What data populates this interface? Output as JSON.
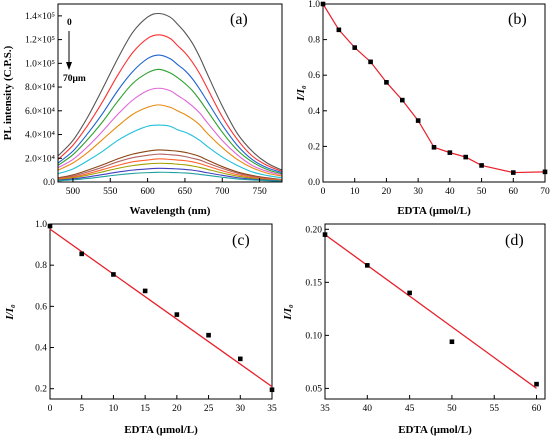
{
  "chart_data": [
    {
      "type": "line",
      "panel_label": "(a)",
      "xlabel": "Wavelength (nm)",
      "ylabel": "PL intensity (C.P.S.)",
      "xlim": [
        480,
        780
      ],
      "ylim": [
        0,
        150000
      ],
      "x_ticks": [
        "500",
        "550",
        "600",
        "650",
        "700",
        "750"
      ],
      "y_ticks": [
        "0.0",
        "2.0×10⁴",
        "4.0×10⁴",
        "6.0×10⁴",
        "8.0×10⁴",
        "1.0×10⁵",
        "1.2×10⁵",
        "1.4×10⁵"
      ],
      "annotations": {
        "top": "0",
        "bottom": "70μm"
      },
      "x": [
        480,
        500,
        520,
        540,
        560,
        580,
        600,
        615,
        630,
        640,
        650,
        660,
        670,
        680,
        700,
        720,
        740,
        760,
        780
      ],
      "series": [
        {
          "color": "#555555",
          "values": [
            22000,
            35000,
            55000,
            79000,
            104000,
            126000,
            139000,
            142000,
            139000,
            133000,
            126000,
            117000,
            105000,
            91000,
            64000,
            41000,
            26000,
            16000,
            10000
          ]
        },
        {
          "color": "#ff3030",
          "values": [
            19000,
            31000,
            48000,
            68000,
            90000,
            109000,
            121000,
            124000,
            121000,
            115000,
            109000,
            101000,
            91000,
            79000,
            55000,
            36000,
            22000,
            14000,
            9000
          ]
        },
        {
          "color": "#1e64d2",
          "values": [
            16000,
            26000,
            41000,
            58000,
            77000,
            93000,
            104000,
            107000,
            104000,
            99000,
            94000,
            87000,
            78000,
            68000,
            48000,
            31000,
            19000,
            12000,
            8000
          ]
        },
        {
          "color": "#2ca02c",
          "values": [
            14000,
            23000,
            36000,
            51000,
            68000,
            83000,
            92000,
            95000,
            92000,
            88000,
            83000,
            77000,
            69000,
            60000,
            42000,
            27000,
            17000,
            10500,
            7000
          ]
        },
        {
          "color": "#e066d8",
          "values": [
            12000,
            19000,
            30000,
            43000,
            57000,
            69000,
            77000,
            79000,
            77000,
            73000,
            69000,
            64000,
            58000,
            50000,
            35000,
            23000,
            14000,
            9000,
            6000
          ]
        },
        {
          "color": "#e88a10",
          "values": [
            10000,
            16000,
            25000,
            36000,
            47000,
            57000,
            63000,
            65000,
            63000,
            60000,
            57000,
            53000,
            48000,
            41000,
            29000,
            19000,
            12000,
            7500,
            5000
          ]
        },
        {
          "color": "#20c0d8",
          "values": [
            7000,
            11000,
            18000,
            26000,
            35000,
            42000,
            47000,
            48000,
            47000,
            44000,
            42000,
            39000,
            35000,
            30000,
            21000,
            14000,
            8500,
            5500,
            3500
          ]
        },
        {
          "color": "#8b4513",
          "values": [
            3500,
            6000,
            10000,
            14500,
            19500,
            23500,
            26000,
            27000,
            26500,
            26000,
            25000,
            23500,
            21500,
            18500,
            13000,
            8500,
            5500,
            3500,
            2000
          ]
        },
        {
          "color": "#b06060",
          "values": [
            3000,
            5000,
            8500,
            12500,
            17000,
            20500,
            22500,
            23500,
            23000,
            22500,
            21500,
            20000,
            18500,
            16000,
            11500,
            7500,
            4800,
            3000,
            1800
          ]
        },
        {
          "color": "#ff6030",
          "values": [
            2500,
            4200,
            7000,
            10500,
            14000,
            17000,
            18500,
            19500,
            19000,
            18500,
            18000,
            17000,
            15500,
            13500,
            9500,
            6200,
            4000,
            2500,
            1500
          ]
        },
        {
          "color": "#a0a000",
          "values": [
            2000,
            3500,
            5800,
            8600,
            11500,
            13800,
            15200,
            15800,
            15500,
            15000,
            14500,
            13500,
            12300,
            10700,
            7600,
            5000,
            3200,
            2000,
            1200
          ]
        },
        {
          "color": "#4040c0",
          "values": [
            1500,
            2600,
            4300,
            6300,
            8400,
            10000,
            11000,
            11500,
            11300,
            11000,
            10600,
            10000,
            9000,
            7800,
            5600,
            3700,
            2400,
            1500,
            900
          ]
        },
        {
          "color": "#20a0a0",
          "values": [
            1000,
            1800,
            3000,
            4500,
            6000,
            7200,
            7900,
            8200,
            8100,
            7900,
            7600,
            7100,
            6400,
            5600,
            4000,
            2600,
            1700,
            1100,
            700
          ]
        }
      ]
    },
    {
      "type": "line",
      "panel_label": "(b)",
      "xlabel": "EDTA (μmol/L)",
      "ylabel": "I/I₀",
      "xlim": [
        0,
        70
      ],
      "ylim": [
        0,
        1.0
      ],
      "x_ticks": [
        "0",
        "10",
        "20",
        "30",
        "40",
        "50",
        "60",
        "70"
      ],
      "y_ticks": [
        "0.0",
        "0.2",
        "0.4",
        "0.6",
        "0.8",
        "1.0"
      ],
      "x": [
        0,
        5,
        10,
        15,
        20,
        25,
        30,
        35,
        40,
        45,
        50,
        60,
        70
      ],
      "values": [
        1.0,
        0.855,
        0.755,
        0.675,
        0.56,
        0.46,
        0.345,
        0.195,
        0.165,
        0.14,
        0.093,
        0.053,
        0.057
      ]
    },
    {
      "type": "scatter",
      "panel_label": "(c)",
      "xlabel": "EDTA (μmol/L)",
      "ylabel": "I/I₀",
      "xlim": [
        0,
        35
      ],
      "ylim": [
        0.15,
        1.0
      ],
      "x_ticks": [
        "0",
        "5",
        "10",
        "15",
        "20",
        "25",
        "30",
        "35"
      ],
      "y_ticks": [
        "0.2",
        "0.4",
        "0.6",
        "0.8",
        "1.0"
      ],
      "x": [
        0,
        5,
        10,
        15,
        20,
        25,
        30,
        35
      ],
      "values": [
        0.99,
        0.855,
        0.755,
        0.675,
        0.56,
        0.46,
        0.345,
        0.195
      ],
      "fit": {
        "x": [
          0,
          35
        ],
        "y": [
          0.975,
          0.21
        ]
      }
    },
    {
      "type": "scatter",
      "panel_label": "(d)",
      "xlabel": "EDTA (μmol/L)",
      "ylabel": "I/I₀",
      "xlim": [
        35,
        61
      ],
      "ylim": [
        0.04,
        0.205
      ],
      "x_ticks": [
        "35",
        "40",
        "45",
        "50",
        "55",
        "60"
      ],
      "y_ticks": [
        "0.05",
        "0.10",
        "0.15",
        "0.20"
      ],
      "x": [
        35,
        40,
        45,
        50,
        60
      ],
      "values": [
        0.195,
        0.166,
        0.14,
        0.094,
        0.054
      ],
      "fit": {
        "x": [
          35,
          60
        ],
        "y": [
          0.195,
          0.05
        ]
      }
    }
  ]
}
